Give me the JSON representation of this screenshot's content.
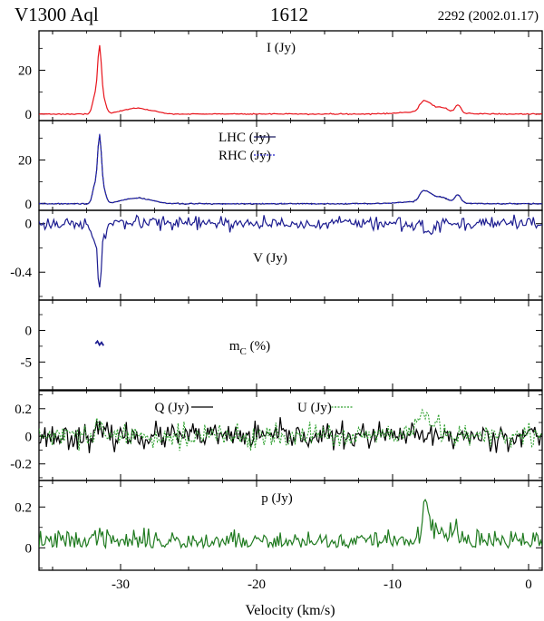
{
  "header": {
    "source": "V1300 Aql",
    "frequency": "1612",
    "epoch": "2292 (2002.01.17)"
  },
  "chart_data": {
    "type": "line",
    "xlabel": "Velocity (km/s)",
    "xlim": [
      -36,
      1
    ],
    "xticks": [
      -30,
      -20,
      -10,
      0
    ],
    "xtick_labels": [
      "-30",
      "-20",
      "-10",
      "0"
    ],
    "colors": {
      "I": "#e8141c",
      "LHC": "#1c1c60",
      "RHC": "#2222c8",
      "V": "#1c1c90",
      "mC": "#1c1c90",
      "Q": "#000000",
      "U": "#2ea02e",
      "p": "#1f7a1f"
    },
    "panels": [
      {
        "id": "I",
        "label_main": "I (Jy)",
        "label_sub": "",
        "ylim": [
          -3,
          38
        ],
        "yticks": [
          0,
          20
        ],
        "ytick_labels": [
          "0",
          "20"
        ],
        "legend": [],
        "series": [
          {
            "name": "I",
            "color": "#e8141c",
            "dashed": false,
            "noise": 0.12,
            "seed": 3,
            "features": [
              [
                -31.9,
                8,
                0.17
              ],
              [
                -31.55,
                29,
                0.14
              ],
              [
                -31.25,
                6,
                0.18
              ],
              [
                -29.5,
                1.6,
                0.8
              ],
              [
                -28.5,
                1.6,
                0.6
              ],
              [
                -27.5,
                0.8,
                0.6
              ],
              [
                -7.8,
                3.8,
                0.25
              ],
              [
                -7.3,
                3.4,
                0.3
              ],
              [
                -6.6,
                1.7,
                0.28
              ],
              [
                -6.1,
                1.4,
                0.28
              ],
              [
                -5.2,
                3.7,
                0.22
              ],
              [
                -7.5,
                1.2,
                1.6
              ]
            ]
          }
        ]
      },
      {
        "id": "LHC-RHC",
        "label_main": "",
        "label_sub": "",
        "ylim": [
          -3,
          38
        ],
        "yticks": [
          0,
          20
        ],
        "ytick_labels": [
          "0",
          "20"
        ],
        "legend": [
          {
            "text": "LHC (Jy)",
            "series": "LHC"
          },
          {
            "text": "RHC (Jy)",
            "series": "RHC"
          }
        ],
        "series": [
          {
            "name": "LHC",
            "color": "#1c1c60",
            "dashed": false,
            "noise": 0.12,
            "seed": 7,
            "features": [
              [
                -31.9,
                8,
                0.17
              ],
              [
                -31.55,
                29,
                0.14
              ],
              [
                -31.25,
                6,
                0.18
              ],
              [
                -29.5,
                1.6,
                0.8
              ],
              [
                -28.5,
                1.6,
                0.6
              ],
              [
                -27.5,
                0.8,
                0.6
              ],
              [
                -7.8,
                3.8,
                0.25
              ],
              [
                -7.3,
                3.4,
                0.3
              ],
              [
                -6.6,
                1.7,
                0.28
              ],
              [
                -6.1,
                1.4,
                0.28
              ],
              [
                -5.2,
                3.7,
                0.22
              ],
              [
                -7.5,
                1.2,
                1.6
              ]
            ]
          },
          {
            "name": "RHC",
            "color": "#2222c8",
            "dashed": true,
            "noise": 0.12,
            "seed": 11,
            "features": [
              [
                -31.9,
                8,
                0.17
              ],
              [
                -31.55,
                29.5,
                0.14
              ],
              [
                -31.25,
                6,
                0.18
              ],
              [
                -29.5,
                1.6,
                0.8
              ],
              [
                -28.5,
                1.6,
                0.6
              ],
              [
                -27.5,
                0.8,
                0.6
              ],
              [
                -7.8,
                3.8,
                0.25
              ],
              [
                -7.3,
                3.4,
                0.3
              ],
              [
                -6.6,
                1.7,
                0.28
              ],
              [
                -6.1,
                1.4,
                0.28
              ],
              [
                -5.2,
                3.7,
                0.22
              ],
              [
                -7.5,
                1.2,
                1.6
              ]
            ]
          }
        ]
      },
      {
        "id": "V",
        "label_main": "V (Jy)",
        "label_sub": "",
        "ylim": [
          -0.63,
          0.11
        ],
        "yticks": [
          0,
          -0.4
        ],
        "ytick_labels": [
          "0",
          "-0.4"
        ],
        "legend": [],
        "series": [
          {
            "name": "V",
            "color": "#1c1c90",
            "dashed": false,
            "noise": 0.026,
            "seed": 17,
            "features": [
              [
                -31.55,
                -0.48,
                0.13
              ],
              [
                -31.85,
                -0.15,
                0.2
              ],
              [
                -31.2,
                -0.1,
                0.2
              ],
              [
                -7.3,
                -0.08,
                0.35
              ],
              [
                -8.0,
                0.02,
                0.4
              ]
            ]
          }
        ]
      },
      {
        "id": "mC",
        "label_main": "m",
        "label_sub": "C",
        "label_suffix": " (%)",
        "ylim": [
          -9.4,
          4.8
        ],
        "yticks": [
          0,
          -5
        ],
        "ytick_labels": [
          "0",
          "-5"
        ],
        "legend": [],
        "segment": {
          "name": "mC",
          "color": "#1c1c90",
          "x": [
            -31.85,
            -31.7,
            -31.55,
            -31.4,
            -31.25
          ],
          "y": [
            -2.1,
            -1.7,
            -2.3,
            -1.9,
            -2.4
          ]
        }
      },
      {
        "id": "QU",
        "label_main": "",
        "label_sub": "",
        "ylim": [
          -0.32,
          0.33
        ],
        "yticks": [
          0.2,
          0,
          -0.2
        ],
        "ytick_labels": [
          "0.2",
          "0",
          "-0.2"
        ],
        "legend": [
          {
            "text": "Q (Jy)",
            "series": "Q"
          },
          {
            "text": "U (Jy)",
            "series": "U"
          }
        ],
        "series": [
          {
            "name": "Q",
            "color": "#000000",
            "dashed": false,
            "noise": 0.045,
            "seed": 23,
            "features": [
              [
                -31.5,
                0.06,
                0.15
              ]
            ]
          },
          {
            "name": "U",
            "color": "#2ea02e",
            "dashed": true,
            "noise": 0.04,
            "seed": 29,
            "features": [
              [
                -31.6,
                0.1,
                0.15
              ],
              [
                -7.8,
                0.15,
                0.4
              ],
              [
                -7.0,
                0.07,
                0.5
              ]
            ]
          }
        ]
      },
      {
        "id": "p",
        "label_main": "p (Jy)",
        "label_sub": "",
        "ylim": [
          -0.11,
          0.33
        ],
        "yticks": [
          0.2,
          0
        ],
        "ytick_labels": [
          "0.2",
          "0"
        ],
        "legend": [],
        "series": [
          {
            "name": "p",
            "color": "#1f7a1f",
            "dashed": false,
            "noise": 0.028,
            "seed": 37,
            "base": 0.03,
            "features": [
              [
                -31.55,
                0.09,
                0.14
              ],
              [
                -21.8,
                0.07,
                0.1
              ],
              [
                -7.6,
                0.14,
                0.22
              ],
              [
                -7.0,
                0.06,
                0.5
              ],
              [
                -5.5,
                0.05,
                0.4
              ]
            ]
          }
        ]
      }
    ]
  }
}
